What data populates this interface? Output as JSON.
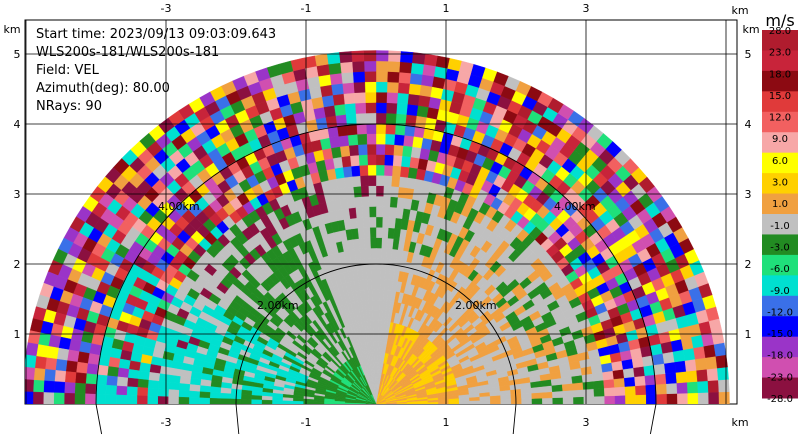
{
  "info": {
    "start_time": "Start time: 2023/09/13 09:03:09.643",
    "station": "WLS200s-181/WLS200s-181",
    "field": "Field: VEL",
    "azimuth": "Azimuth(deg): 80.00",
    "nrays": "NRays: 90"
  },
  "axes": {
    "x_unit": "km",
    "y_unit": "km",
    "x_ticks": [
      "-3",
      "-1",
      "1",
      "3"
    ],
    "y_ticks": [
      "1",
      "2",
      "3",
      "4",
      "5"
    ]
  },
  "rings": [
    "2.00km",
    "4.00km"
  ],
  "colorbar": {
    "unit": "m/s",
    "labels": [
      "28.0",
      "23.0",
      "18.0",
      "15.0",
      "12.0",
      "9.0",
      "6.0",
      "3.0",
      "1.0",
      "-1.0",
      "-3.0",
      "-6.0",
      "-9.0",
      "-12.0",
      "-15.0",
      "-18.0",
      "-23.0",
      "-28.0"
    ],
    "colors": [
      "#b01c2e",
      "#c8243a",
      "#8c0a12",
      "#e03a3a",
      "#f26060",
      "#f7a7a7",
      "#ffff00",
      "#ffd000",
      "#f0a040",
      "#c0c0c0",
      "#228b22",
      "#1fe07a",
      "#00e0d0",
      "#3a70e8",
      "#0000ff",
      "#9a34c8",
      "#d04fb0",
      "#8b1040"
    ]
  }
}
